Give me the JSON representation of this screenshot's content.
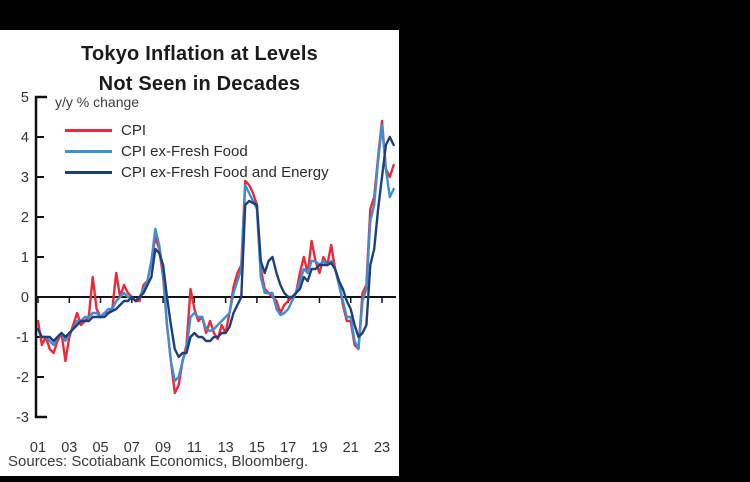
{
  "title": {
    "line1": "Tokyo Inflation at Levels",
    "line2": "Not Seen in Decades"
  },
  "unit_label": "y/y % change",
  "source_note": "Sources: Scotiabank Economics, Bloomberg.",
  "colors": {
    "background": "#000000",
    "panel": "#ffffff",
    "cpi": "#ED2939",
    "cpi_ex_fresh_food": "#3E8FD2",
    "cpi_ex_fresh_food_energy": "#1F4076",
    "axis": "#111111",
    "text": "#333333"
  },
  "legend": [
    {
      "label": "CPI",
      "color": "#ED2939"
    },
    {
      "label": "CPI ex-Fresh Food",
      "color": "#3E8FD2"
    },
    {
      "label": "CPI ex-Fresh Food and Energy",
      "color": "#1F4076"
    }
  ],
  "chart_data": {
    "type": "line",
    "title": "Tokyo Inflation at Levels Not Seen in Decades",
    "xlabel": "",
    "ylabel": "y/y % change",
    "ylim": [
      -3,
      5
    ],
    "y_ticks": [
      5,
      4,
      3,
      2,
      1,
      0,
      -1,
      -2,
      -3
    ],
    "x_tick_years": [
      2001,
      2003,
      2005,
      2007,
      2009,
      2011,
      2013,
      2015,
      2017,
      2019,
      2021,
      2023
    ],
    "x_tick_labels": [
      "01",
      "03",
      "05",
      "07",
      "09",
      "11",
      "13",
      "15",
      "17",
      "19",
      "21",
      "23"
    ],
    "grid": false,
    "legend_position": "upper-left",
    "x": [
      2001,
      2001.25,
      2001.5,
      2001.75,
      2002,
      2002.25,
      2002.5,
      2002.75,
      2003,
      2003.25,
      2003.5,
      2003.75,
      2004,
      2004.25,
      2004.5,
      2004.75,
      2005,
      2005.25,
      2005.5,
      2005.75,
      2006,
      2006.25,
      2006.5,
      2006.75,
      2007,
      2007.25,
      2007.5,
      2007.75,
      2008,
      2008.25,
      2008.5,
      2008.75,
      2009,
      2009.25,
      2009.5,
      2009.75,
      2010,
      2010.25,
      2010.5,
      2010.75,
      2011,
      2011.25,
      2011.5,
      2011.75,
      2012,
      2012.25,
      2012.5,
      2012.75,
      2013,
      2013.25,
      2013.5,
      2013.75,
      2014,
      2014.25,
      2014.5,
      2014.75,
      2015,
      2015.25,
      2015.5,
      2015.75,
      2016,
      2016.25,
      2016.5,
      2016.75,
      2017,
      2017.25,
      2017.5,
      2017.75,
      2018,
      2018.25,
      2018.5,
      2018.75,
      2019,
      2019.25,
      2019.5,
      2019.75,
      2020,
      2020.25,
      2020.5,
      2020.75,
      2021,
      2021.25,
      2021.5,
      2021.75,
      2022,
      2022.25,
      2022.5,
      2022.75,
      2023,
      2023.25,
      2023.5,
      2023.75
    ],
    "series": [
      {
        "name": "CPI",
        "color": "#ED2939",
        "values": [
          -0.6,
          -1.2,
          -1.0,
          -1.3,
          -1.4,
          -1.1,
          -0.9,
          -1.6,
          -1.0,
          -0.7,
          -0.4,
          -0.7,
          -0.6,
          -0.5,
          0.5,
          -0.3,
          -0.5,
          -0.4,
          -0.4,
          -0.3,
          0.6,
          0.0,
          0.3,
          0.1,
          0.0,
          -0.1,
          -0.1,
          0.3,
          0.4,
          0.9,
          1.5,
          1.2,
          0.5,
          -0.7,
          -1.6,
          -2.4,
          -2.2,
          -1.6,
          -1.2,
          0.2,
          -0.3,
          -0.6,
          -0.5,
          -0.9,
          -0.6,
          -0.9,
          -1.05,
          -0.7,
          -0.9,
          -0.4,
          0.25,
          0.6,
          0.8,
          2.9,
          2.8,
          2.6,
          2.3,
          0.7,
          0.2,
          0.1,
          0.0,
          -0.1,
          -0.4,
          -0.2,
          -0.1,
          0.0,
          0.1,
          0.6,
          1.0,
          0.6,
          1.4,
          0.9,
          0.6,
          1.0,
          0.8,
          1.3,
          0.7,
          0.4,
          -0.2,
          -0.6,
          -0.6,
          -1.2,
          -1.3,
          0.1,
          0.3,
          2.2,
          2.5,
          3.5,
          4.4,
          3.2,
          3.0,
          3.3
        ]
      },
      {
        "name": "CPI ex-Fresh Food",
        "color": "#3E8FD2",
        "values": [
          -0.8,
          -1.0,
          -1.0,
          -1.1,
          -1.2,
          -1.0,
          -0.9,
          -1.1,
          -0.9,
          -0.8,
          -0.6,
          -0.6,
          -0.5,
          -0.5,
          -0.4,
          -0.4,
          -0.5,
          -0.4,
          -0.3,
          -0.3,
          -0.1,
          0.0,
          0.1,
          0.0,
          0.0,
          -0.1,
          0.0,
          0.2,
          0.4,
          0.9,
          1.7,
          1.3,
          0.6,
          -0.7,
          -1.6,
          -2.1,
          -2.0,
          -1.6,
          -1.3,
          -0.5,
          -0.4,
          -0.5,
          -0.5,
          -0.8,
          -0.85,
          -0.8,
          -0.7,
          -0.6,
          -0.5,
          -0.4,
          0.1,
          0.4,
          0.7,
          2.8,
          2.6,
          2.4,
          2.2,
          0.5,
          0.1,
          0.1,
          0.1,
          -0.3,
          -0.45,
          -0.4,
          -0.3,
          -0.1,
          0.1,
          0.4,
          0.7,
          0.6,
          0.9,
          0.9,
          0.8,
          0.9,
          0.8,
          0.9,
          0.7,
          0.3,
          -0.1,
          -0.5,
          -0.5,
          -1.1,
          -1.3,
          -0.1,
          0.2,
          1.9,
          2.3,
          3.4,
          4.3,
          3.2,
          2.5,
          2.7
        ]
      },
      {
        "name": "CPI ex-Fresh Food and Energy",
        "color": "#1F4076",
        "values": [
          -0.8,
          -1.0,
          -1.0,
          -1.0,
          -1.1,
          -1.0,
          -0.9,
          -1.0,
          -0.9,
          -0.8,
          -0.7,
          -0.6,
          -0.6,
          -0.6,
          -0.5,
          -0.5,
          -0.5,
          -0.5,
          -0.4,
          -0.35,
          -0.3,
          -0.2,
          -0.1,
          -0.1,
          0.0,
          -0.1,
          0.0,
          0.1,
          0.3,
          0.5,
          1.2,
          1.1,
          0.8,
          0.0,
          -0.7,
          -1.3,
          -1.5,
          -1.4,
          -1.4,
          -1.0,
          -0.9,
          -1.0,
          -1.0,
          -1.1,
          -1.1,
          -1.0,
          -1.0,
          -0.9,
          -0.9,
          -0.75,
          -0.4,
          -0.2,
          0.0,
          2.3,
          2.4,
          2.35,
          2.3,
          0.9,
          0.6,
          0.9,
          1.0,
          0.6,
          0.3,
          0.1,
          0.0,
          0.0,
          0.1,
          0.2,
          0.5,
          0.4,
          0.7,
          0.7,
          0.8,
          0.8,
          0.8,
          0.85,
          0.7,
          0.4,
          0.2,
          -0.1,
          -0.3,
          -0.7,
          -1.0,
          -0.9,
          -0.7,
          0.8,
          1.2,
          2.2,
          3.0,
          3.8,
          4.0,
          3.8
        ]
      }
    ]
  }
}
